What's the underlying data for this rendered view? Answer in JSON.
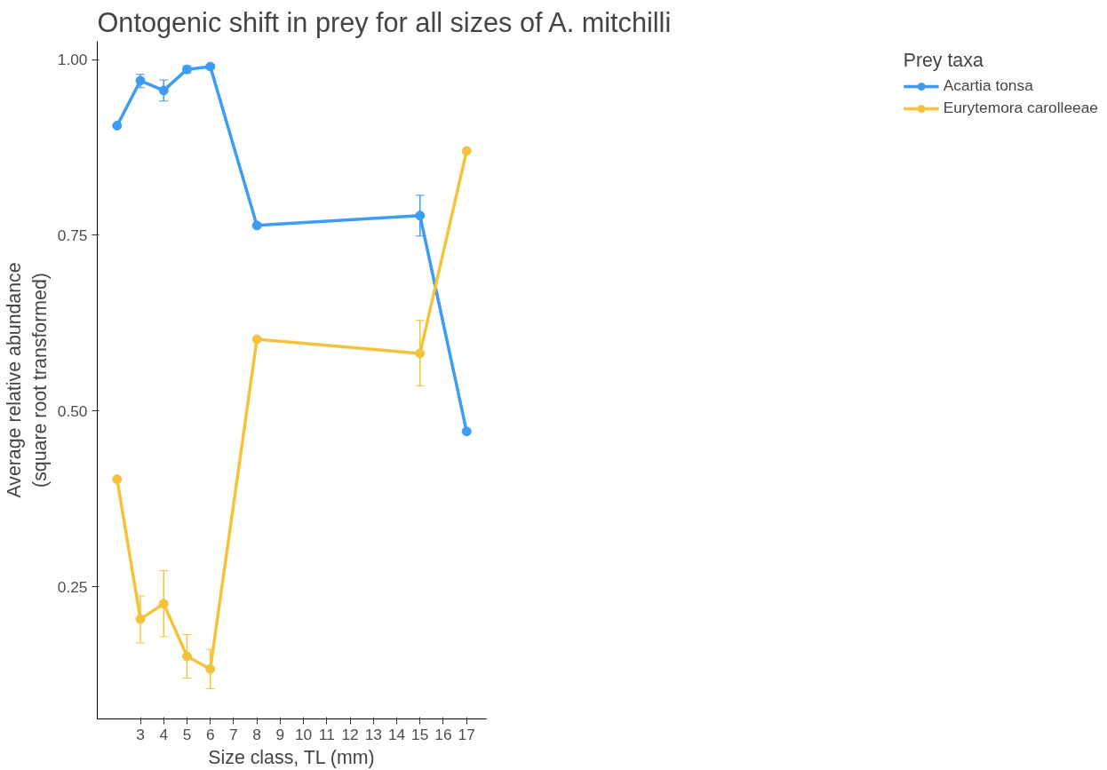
{
  "chart_data": {
    "type": "line",
    "title": "Ontogenic shift in prey for all sizes of A. mitchilli",
    "xlabel": "Size class, TL (mm)",
    "ylabel": "Average relative abundance\n(square root transformed)",
    "legend_title": "Prey taxa",
    "x": [
      2,
      3,
      4,
      5,
      6,
      8,
      15,
      17
    ],
    "series": [
      {
        "name": "Acartia tonsa",
        "color": "#3d9cf5",
        "values": [
          0.906,
          0.97,
          0.956,
          0.986,
          0.99,
          0.764,
          0.778,
          0.471
        ],
        "errors": [
          null,
          [
            0.96,
            0.979
          ],
          [
            0.941,
            0.971
          ],
          [
            0.981,
            0.991
          ],
          [
            0.987,
            0.993
          ],
          null,
          [
            0.749,
            0.807
          ],
          null
        ]
      },
      {
        "name": "Eurytemora carolleeae",
        "color": "#f5c33b",
        "values": [
          0.403,
          0.204,
          0.226,
          0.151,
          0.133,
          0.602,
          0.582,
          0.87
        ],
        "errors": [
          null,
          [
            0.17,
            0.237
          ],
          [
            0.179,
            0.273
          ],
          [
            0.12,
            0.182
          ],
          [
            0.105,
            0.161
          ],
          null,
          [
            0.536,
            0.629
          ],
          null
        ]
      }
    ],
    "xlim": [
      1.15,
      17.85
    ],
    "xticks": [
      3,
      4,
      5,
      6,
      7,
      8,
      9,
      10,
      11,
      12,
      13,
      14,
      15,
      16,
      17
    ],
    "ylim": [
      0.062,
      1.026
    ],
    "yticks": [
      {
        "value": 0.25,
        "label": "0.25"
      },
      {
        "value": 0.5,
        "label": "0.50"
      },
      {
        "value": 0.75,
        "label": "0.75"
      },
      {
        "value": 1.0,
        "label": "1.00"
      }
    ],
    "grid": false,
    "legend": "right",
    "marker": "circle",
    "line_style": "solid"
  }
}
